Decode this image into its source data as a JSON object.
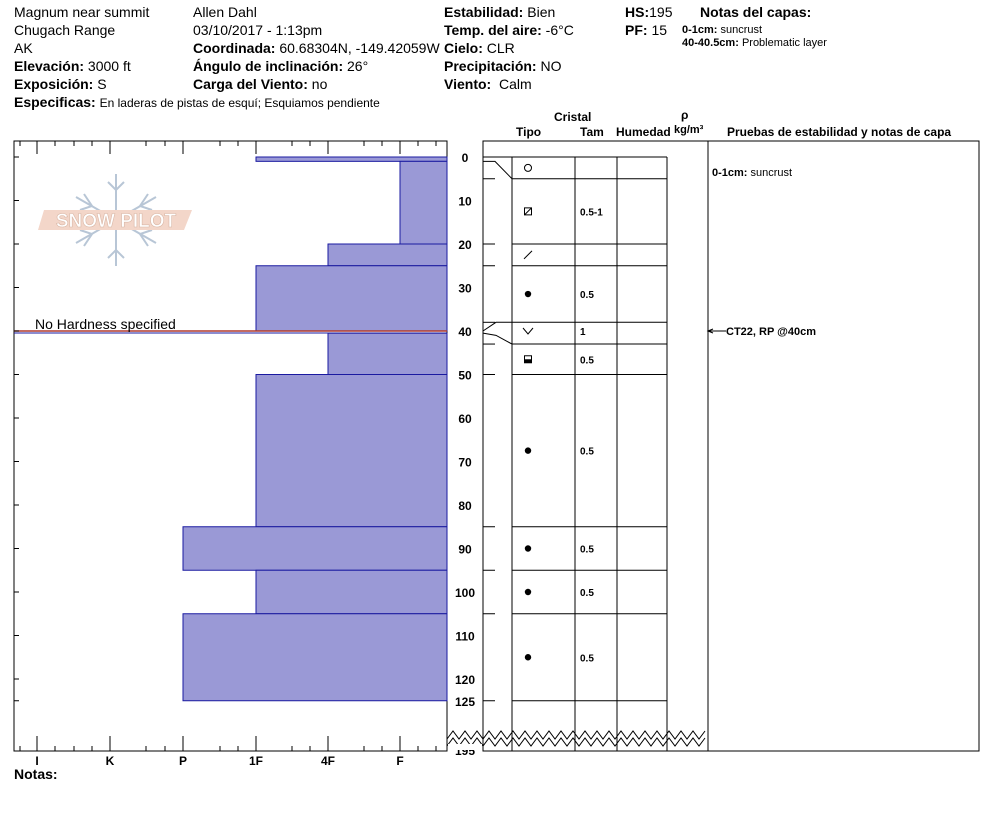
{
  "header": {
    "location": "Magnum near summit",
    "range": "Chugach Range",
    "state": "AK",
    "elevation_label": "Elevación:",
    "elevation": "3000 ft",
    "aspect_label": "Exposición:",
    "aspect": "S",
    "specifics_label": "Especificas:",
    "specifics": "En laderas de pistas de esquí; Esquiamos pendiente",
    "observer": "Allen Dahl",
    "datetime": "03/10/2017 - 1:13pm",
    "coord_label": "Coordinada:",
    "coords": "60.68304N, -149.42059W",
    "slope_label": "Ángulo de inclinación:",
    "slope": "26°",
    "wind_load_label": "Carga del Viento:",
    "wind_load": "no",
    "stability_label": "Estabilidad:",
    "stability": "Bien",
    "air_temp_label": "Temp. del aire:",
    "air_temp": "-6°C",
    "sky_label": "Cielo:",
    "sky": "CLR",
    "precip_label": "Precipitación:",
    "precip": "NO",
    "wind_label": "Viento:",
    "wind": "Calm",
    "hs_label": "HS:",
    "hs": "195",
    "pf_label": "PF:",
    "pf": "15",
    "layer_notes_label": "Notas del capas:",
    "layer_notes": [
      {
        "depth": "0-1cm:",
        "text": "suncrust"
      },
      {
        "depth": "40-40.5cm:",
        "text": "Problematic layer"
      }
    ]
  },
  "columns": {
    "crystal": "Cristal",
    "type": "Tipo",
    "size": "Tam",
    "moisture": "Humedad",
    "rho": "ρ",
    "density_unit": "kg/m³",
    "tests": "Pruebas de estabilidad y notas de capa"
  },
  "notes_label": "Notas:",
  "logo_text": "SNOW PILOT",
  "colors": {
    "hardness_fill": "#9a99d6",
    "hardness_edge": "#1a1aa0",
    "no_hardness_line": "#b03a2e"
  },
  "chart_data": {
    "type": "bar",
    "orientation": "horizontal",
    "title": "",
    "xlabel": "",
    "ylabel": "",
    "hardness_scale": [
      "I",
      "K",
      "P",
      "1F",
      "4F",
      "F"
    ],
    "depth_ticks": [
      0,
      10,
      20,
      30,
      40,
      50,
      60,
      70,
      80,
      90,
      100,
      110,
      120,
      125,
      195
    ],
    "ylim_cm": [
      0,
      125
    ],
    "total_depth_cm": 195,
    "hardness_layers": [
      {
        "top": 0,
        "bottom": 1,
        "hardness": "1F"
      },
      {
        "top": 1,
        "bottom": 20,
        "hardness": "F"
      },
      {
        "top": 20,
        "bottom": 25,
        "hardness": "4F"
      },
      {
        "top": 25,
        "bottom": 40,
        "hardness": "1F"
      },
      {
        "top": 40.5,
        "bottom": 50,
        "hardness": "4F"
      },
      {
        "top": 50,
        "bottom": 85,
        "hardness": "1F"
      },
      {
        "top": 85,
        "bottom": 95,
        "hardness": "P"
      },
      {
        "top": 95,
        "bottom": 105,
        "hardness": "1F"
      },
      {
        "top": 105,
        "bottom": 125,
        "hardness": "P"
      }
    ],
    "no_hardness": {
      "depth": 40,
      "label": "No Hardness specified"
    },
    "layer_boundaries": [
      0,
      5,
      20,
      25,
      38,
      43,
      50,
      85,
      95,
      105,
      125
    ],
    "crystal_rows": [
      {
        "depth": 2.5,
        "symbol": "circle-open",
        "size": ""
      },
      {
        "depth": 12.5,
        "symbol": "square-slash",
        "size": "0.5-1"
      },
      {
        "depth": 22.5,
        "symbol": "slash",
        "size": ""
      },
      {
        "depth": 31.5,
        "symbol": "dot",
        "size": "0.5"
      },
      {
        "depth": 40,
        "symbol": "chevron",
        "size": "1"
      },
      {
        "depth": 46.5,
        "symbol": "half-square",
        "size": "0.5"
      },
      {
        "depth": 67.5,
        "symbol": "dot",
        "size": "0.5"
      },
      {
        "depth": 90,
        "symbol": "dot",
        "size": "0.5"
      },
      {
        "depth": 100,
        "symbol": "dot",
        "size": "0.5"
      },
      {
        "depth": 115,
        "symbol": "dot",
        "size": "0.5"
      }
    ],
    "test_notes": [
      {
        "depth": 3.5,
        "label": "0-1cm:",
        "text": "suncrust"
      }
    ],
    "stability_tests": [
      {
        "depth": 40,
        "text": "CT22, RP @40cm"
      }
    ]
  }
}
